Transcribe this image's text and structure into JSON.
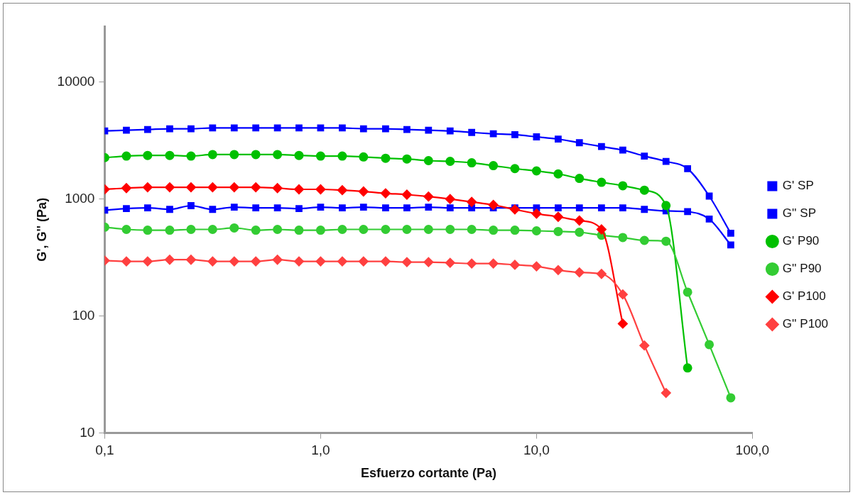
{
  "chart_data": {
    "type": "line",
    "xlabel": "Esfuerzo cortante (Pa)",
    "ylabel": "G', G'' (Pa)",
    "log": "xy",
    "grid": false,
    "legend": "right",
    "line_style": "solid",
    "x": [
      0.1,
      0.126,
      0.158,
      0.2,
      0.251,
      0.316,
      0.398,
      0.501,
      0.631,
      0.794,
      1,
      1.26,
      1.58,
      2,
      2.51,
      3.16,
      3.98,
      5.01,
      6.31,
      7.94,
      10,
      12.6,
      15.8,
      20,
      25.1,
      31.6,
      39.8,
      50.1,
      63.1,
      79.4
    ],
    "xlim": [
      0.1,
      100
    ],
    "xticks": [
      {
        "value": 0.1,
        "label": "0,1"
      },
      {
        "value": 1,
        "label": "1,0"
      },
      {
        "value": 10,
        "label": "10,0"
      },
      {
        "value": 100,
        "label": "100,0"
      }
    ],
    "ylim": [
      10,
      30000
    ],
    "yticks": [
      10,
      100,
      1000,
      10000
    ],
    "series": [
      {
        "name": "G' SP",
        "color": "#0000ff",
        "marker": "square",
        "values": [
          3820,
          3880,
          3930,
          3990,
          3990,
          4050,
          4050,
          4050,
          4050,
          4050,
          4050,
          4050,
          3990,
          3990,
          3930,
          3880,
          3820,
          3710,
          3610,
          3550,
          3400,
          3250,
          3030,
          2810,
          2620,
          2330,
          2100,
          1820,
          1060,
          510
        ]
      },
      {
        "name": "G'' SP",
        "color": "#0000ff",
        "marker": "square",
        "values": [
          804,
          828,
          840,
          816,
          878,
          816,
          852,
          840,
          840,
          828,
          852,
          840,
          852,
          840,
          840,
          852,
          840,
          840,
          840,
          840,
          840,
          840,
          840,
          840,
          840,
          816,
          792,
          780,
          675,
          405
        ]
      },
      {
        "name": "G' P90",
        "color": "#00c000",
        "marker": "circle",
        "values": [
          2260,
          2330,
          2360,
          2360,
          2330,
          2400,
          2400,
          2400,
          2400,
          2360,
          2330,
          2330,
          2290,
          2230,
          2200,
          2130,
          2100,
          2040,
          1930,
          1820,
          1740,
          1640,
          1500,
          1390,
          1300,
          1190,
          880,
          36,
          null,
          null
        ]
      },
      {
        "name": "G'' P90",
        "color": "#33cc33",
        "marker": "circle",
        "values": [
          575,
          550,
          542,
          542,
          550,
          550,
          566,
          542,
          550,
          542,
          542,
          550,
          550,
          550,
          550,
          550,
          550,
          550,
          542,
          542,
          535,
          528,
          520,
          490,
          469,
          443,
          436,
          160,
          57,
          20
        ]
      },
      {
        "name": "G' P100",
        "color": "#ff0000",
        "marker": "diamond",
        "values": [
          1210,
          1240,
          1260,
          1260,
          1260,
          1260,
          1260,
          1260,
          1240,
          1210,
          1210,
          1190,
          1160,
          1120,
          1090,
          1050,
          1000,
          945,
          890,
          815,
          750,
          705,
          655,
          550,
          86,
          null,
          null,
          null,
          null,
          null
        ]
      },
      {
        "name": "G'' P100",
        "color": "#ff4040",
        "marker": "diamond",
        "values": [
          298,
          293,
          293,
          303,
          303,
          293,
          293,
          293,
          303,
          293,
          293,
          293,
          293,
          293,
          289,
          289,
          285,
          281,
          281,
          274,
          266,
          247,
          236,
          229,
          153,
          56,
          22,
          null,
          null,
          null
        ]
      }
    ]
  }
}
